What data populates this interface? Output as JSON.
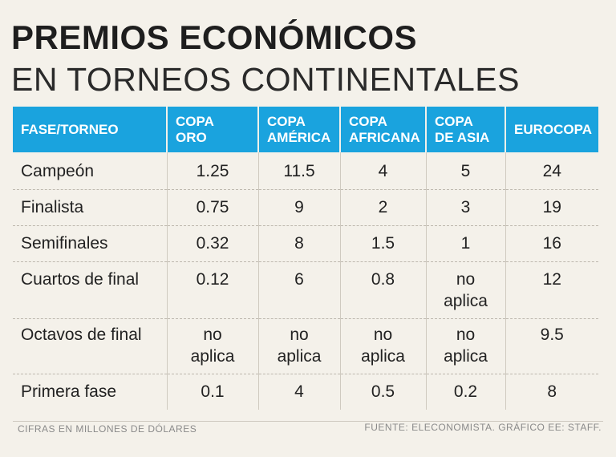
{
  "title": "PREMIOS ECONÓMICOS",
  "subtitle": "EN TORNEOS CONTINENTALES",
  "table": {
    "headers": [
      [
        "FASE/TORNEO"
      ],
      [
        "COPA",
        "ORO"
      ],
      [
        "COPA",
        "AMÉRICA"
      ],
      [
        "COPA",
        "AFRICANA"
      ],
      [
        "COPA",
        "DE ASIA"
      ],
      [
        "EUROCOPA"
      ]
    ],
    "rows": [
      [
        "Campeón",
        "1.25",
        "11.5",
        "4",
        "5",
        "24"
      ],
      [
        "Finalista",
        "0.75",
        "9",
        "2",
        "3",
        "19"
      ],
      [
        "Semifinales",
        "0.32",
        "8",
        "1.5",
        "1",
        "16"
      ],
      [
        "Cuartos de final",
        "0.12",
        "6",
        "0.8",
        "no\naplica",
        "12"
      ],
      [
        "Octavos de final",
        "no\naplica",
        "no\naplica",
        "no\naplica",
        "no\naplica",
        "9.5"
      ],
      [
        "Primera fase",
        "0.1",
        "4",
        "0.5",
        "0.2",
        "8"
      ]
    ]
  },
  "footer": {
    "note": "CIFRAS EN MILLONES DE DÓLARES",
    "source": "FUENTE: ELECONOMISTA.  GRÁFICO EE: STAFF."
  },
  "colors": {
    "header_bg": "#1aa3de",
    "background": "#f4f1ea"
  }
}
